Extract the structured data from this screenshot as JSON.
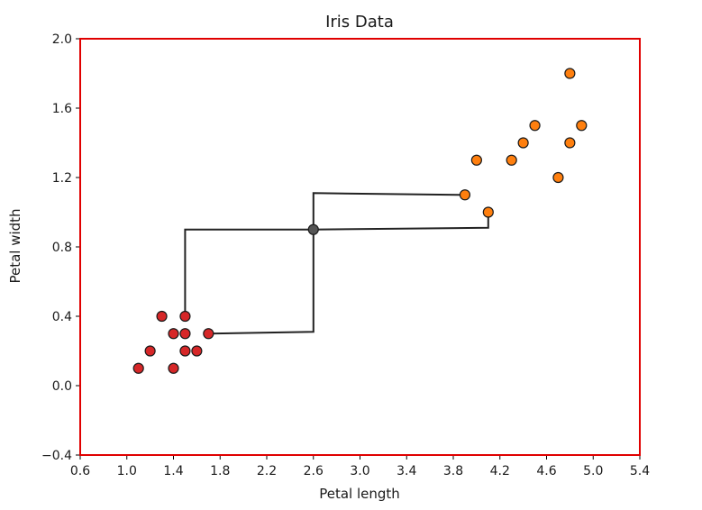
{
  "chart_data": {
    "type": "scatter",
    "title": "Iris Data",
    "xlabel": "Petal length",
    "ylabel": "Petal width",
    "xlim": [
      0.6,
      5.4
    ],
    "ylim": [
      -0.4,
      2.0
    ],
    "xticks": [
      "0.6",
      "1.0",
      "1.4",
      "1.8",
      "2.2",
      "2.6",
      "3.0",
      "3.4",
      "3.8",
      "4.2",
      "4.6",
      "5.0",
      "5.4"
    ],
    "yticks": [
      "−0.4",
      "0.0",
      "0.4",
      "0.8",
      "1.2",
      "1.6",
      "2.0"
    ],
    "grid": false,
    "frame_color": "#e00000",
    "series": [
      {
        "color": "#d62728",
        "points": [
          {
            "x": 1.1,
            "y": 0.1
          },
          {
            "x": 1.2,
            "y": 0.2
          },
          {
            "x": 1.3,
            "y": 0.4
          },
          {
            "x": 1.4,
            "y": 0.3
          },
          {
            "x": 1.4,
            "y": 0.1
          },
          {
            "x": 1.5,
            "y": 0.4
          },
          {
            "x": 1.5,
            "y": 0.3
          },
          {
            "x": 1.5,
            "y": 0.2
          },
          {
            "x": 1.6,
            "y": 0.2
          },
          {
            "x": 1.7,
            "y": 0.3
          }
        ]
      },
      {
        "color": "#ff7f0e",
        "points": [
          {
            "x": 3.9,
            "y": 1.1
          },
          {
            "x": 4.0,
            "y": 1.3
          },
          {
            "x": 4.1,
            "y": 1.0
          },
          {
            "x": 4.3,
            "y": 1.3
          },
          {
            "x": 4.4,
            "y": 1.4
          },
          {
            "x": 4.5,
            "y": 1.5
          },
          {
            "x": 4.7,
            "y": 1.2
          },
          {
            "x": 4.8,
            "y": 1.8
          },
          {
            "x": 4.8,
            "y": 1.4
          },
          {
            "x": 4.9,
            "y": 1.5
          }
        ]
      }
    ],
    "center_point": {
      "x": 2.6,
      "y": 0.9
    },
    "connector_color": "#222222",
    "connectors": [
      [
        [
          1.5,
          0.4
        ],
        [
          1.5,
          0.9
        ],
        [
          2.6,
          0.9
        ]
      ],
      [
        [
          1.7,
          0.3
        ],
        [
          2.6,
          0.31
        ],
        [
          2.6,
          0.9
        ]
      ],
      [
        [
          2.6,
          0.9
        ],
        [
          2.6,
          1.11
        ],
        [
          3.9,
          1.1
        ]
      ],
      [
        [
          2.6,
          0.9
        ],
        [
          4.1,
          0.91
        ],
        [
          4.1,
          1.0
        ]
      ]
    ]
  }
}
